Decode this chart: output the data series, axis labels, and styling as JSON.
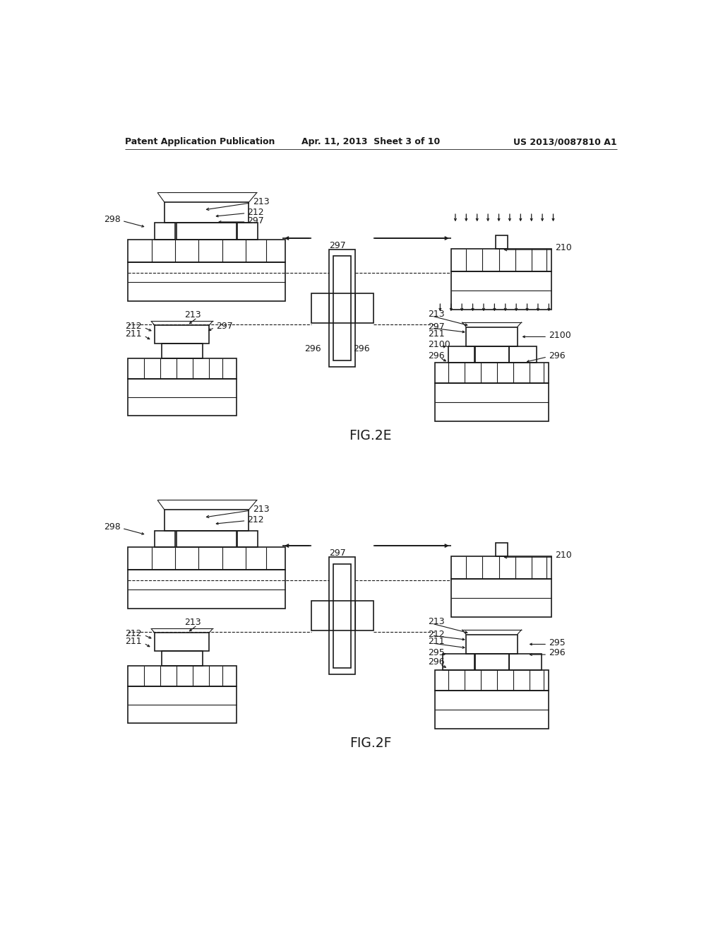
{
  "header_left": "Patent Application Publication",
  "header_center": "Apr. 11, 2013  Sheet 3 of 10",
  "header_right": "US 2013/0087810 A1",
  "fig_label_E": "FIG.2E",
  "fig_label_F": "FIG.2F",
  "bg_color": "#ffffff",
  "line_color": "#1a1a1a"
}
